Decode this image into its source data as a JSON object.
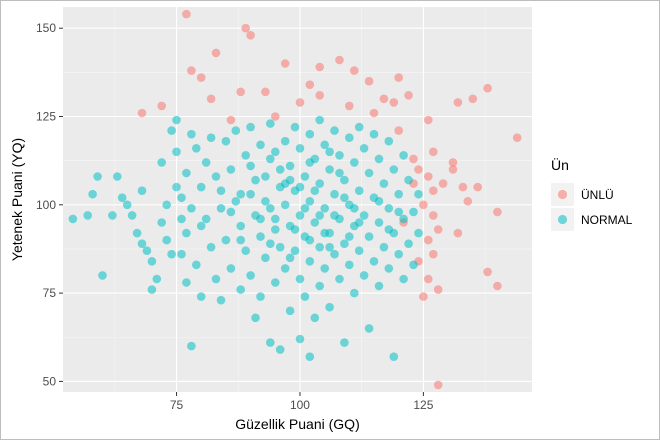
{
  "chart_data": {
    "type": "scatter",
    "xlabel": "Güzellik Puani (GQ)",
    "ylabel": "Yetenek Puani (YQ)",
    "xlim": [
      52,
      147
    ],
    "ylim": [
      47,
      156
    ],
    "x_ticks": [
      75,
      100,
      125
    ],
    "y_ticks": [
      50,
      75,
      100,
      125,
      150
    ],
    "grid": true,
    "legend": {
      "title": "Ün",
      "placement": "right",
      "entries": [
        "ÜNLÜ",
        "NORMAL"
      ]
    },
    "colors": {
      "ÜNLÜ": "#F8766D",
      "NORMAL": "#00BFC4",
      "panel": "#EBEBEB",
      "grid_major": "#FFFFFF",
      "grid_minor": "#F5F5F5"
    },
    "series": [
      {
        "name": "ÜNLÜ",
        "points": [
          [
            77,
            154
          ],
          [
            89,
            150
          ],
          [
            90,
            148
          ],
          [
            83,
            143
          ],
          [
            78,
            138
          ],
          [
            80,
            136
          ],
          [
            97,
            140
          ],
          [
            104,
            139
          ],
          [
            108,
            141
          ],
          [
            111,
            138
          ],
          [
            114,
            135
          ],
          [
            120,
            136
          ],
          [
            119,
            129
          ],
          [
            122,
            131
          ],
          [
            117,
            130
          ],
          [
            104,
            131
          ],
          [
            102,
            134
          ],
          [
            93,
            132
          ],
          [
            88,
            132
          ],
          [
            82,
            130
          ],
          [
            72,
            128
          ],
          [
            68,
            126
          ],
          [
            86,
            124
          ],
          [
            95,
            125
          ],
          [
            100,
            129
          ],
          [
            110,
            128
          ],
          [
            115,
            126
          ],
          [
            126,
            124
          ],
          [
            132,
            129
          ],
          [
            135,
            130
          ],
          [
            138,
            133
          ],
          [
            144,
            119
          ],
          [
            120,
            121
          ],
          [
            123,
            113
          ],
          [
            124,
            110
          ],
          [
            126,
            108
          ],
          [
            127,
            104
          ],
          [
            129,
            106
          ],
          [
            125,
            100
          ],
          [
            127,
            97
          ],
          [
            128,
            93
          ],
          [
            126,
            90
          ],
          [
            127,
            86
          ],
          [
            124,
            84
          ],
          [
            126,
            79
          ],
          [
            125,
            74
          ],
          [
            128,
            76
          ],
          [
            131,
            110
          ],
          [
            131,
            112
          ],
          [
            132,
            92
          ],
          [
            134,
            101
          ],
          [
            136,
            105
          ],
          [
            140,
            98
          ],
          [
            138,
            81
          ],
          [
            140,
            77
          ],
          [
            128,
            49
          ],
          [
            121,
            95
          ],
          [
            123,
            106
          ],
          [
            127,
            115
          ],
          [
            133,
            105
          ]
        ]
      },
      {
        "name": "NORMAL",
        "points": [
          [
            54,
            96
          ],
          [
            57,
            97
          ],
          [
            58,
            103
          ],
          [
            59,
            108
          ],
          [
            60,
            80
          ],
          [
            62,
            97
          ],
          [
            63,
            108
          ],
          [
            64,
            102
          ],
          [
            65,
            100
          ],
          [
            66,
            97
          ],
          [
            67,
            92
          ],
          [
            68,
            104
          ],
          [
            68,
            89
          ],
          [
            69,
            87
          ],
          [
            70,
            84
          ],
          [
            70,
            76
          ],
          [
            71,
            79
          ],
          [
            72,
            112
          ],
          [
            72,
            95
          ],
          [
            73,
            100
          ],
          [
            73,
            90
          ],
          [
            74,
            121
          ],
          [
            74,
            86
          ],
          [
            75,
            124
          ],
          [
            75,
            115
          ],
          [
            75,
            105
          ],
          [
            76,
            96
          ],
          [
            76,
            86
          ],
          [
            77,
            109
          ],
          [
            77,
            92
          ],
          [
            77,
            78
          ],
          [
            78,
            120
          ],
          [
            78,
            99
          ],
          [
            78,
            60
          ],
          [
            79,
            116
          ],
          [
            79,
            83
          ],
          [
            80,
            105
          ],
          [
            80,
            74
          ],
          [
            81,
            112
          ],
          [
            81,
            96
          ],
          [
            82,
            119
          ],
          [
            82,
            88
          ],
          [
            83,
            108
          ],
          [
            83,
            79
          ],
          [
            84,
            99
          ],
          [
            84,
            73
          ],
          [
            85,
            118
          ],
          [
            85,
            90
          ],
          [
            86,
            110
          ],
          [
            86,
            82
          ],
          [
            87,
            101
          ],
          [
            87,
            121
          ],
          [
            88,
            94
          ],
          [
            88,
            76
          ],
          [
            89,
            114
          ],
          [
            89,
            87
          ],
          [
            90,
            122
          ],
          [
            90,
            103
          ],
          [
            90,
            80
          ],
          [
            91,
            97
          ],
          [
            91,
            68
          ],
          [
            92,
            117
          ],
          [
            92,
            91
          ],
          [
            92,
            74
          ],
          [
            93,
            108
          ],
          [
            93,
            85
          ],
          [
            94,
            123
          ],
          [
            94,
            99
          ],
          [
            94,
            61
          ],
          [
            95,
            115
          ],
          [
            95,
            93
          ],
          [
            95,
            78
          ],
          [
            96,
            105
          ],
          [
            96,
            88
          ],
          [
            96,
            59
          ],
          [
            97,
            118
          ],
          [
            97,
            100
          ],
          [
            97,
            82
          ],
          [
            98,
            111
          ],
          [
            98,
            94
          ],
          [
            98,
            70
          ],
          [
            99,
            122
          ],
          [
            99,
            104
          ],
          [
            99,
            87
          ],
          [
            100,
            116
          ],
          [
            100,
            97
          ],
          [
            100,
            79
          ],
          [
            100,
            62
          ],
          [
            101,
            108
          ],
          [
            101,
            91
          ],
          [
            101,
            74
          ],
          [
            102,
            120
          ],
          [
            102,
            101
          ],
          [
            102,
            84
          ],
          [
            102,
            57
          ],
          [
            103,
            113
          ],
          [
            103,
            95
          ],
          [
            103,
            68
          ],
          [
            104,
            124
          ],
          [
            104,
            106
          ],
          [
            104,
            88
          ],
          [
            104,
            77
          ],
          [
            105,
            117
          ],
          [
            105,
            99
          ],
          [
            105,
            82
          ],
          [
            106,
            110
          ],
          [
            106,
            92
          ],
          [
            106,
            71
          ],
          [
            107,
            121
          ],
          [
            107,
            103
          ],
          [
            107,
            86
          ],
          [
            108,
            114
          ],
          [
            108,
            96
          ],
          [
            108,
            79
          ],
          [
            109,
            107
          ],
          [
            109,
            89
          ],
          [
            109,
            61
          ],
          [
            110,
            119
          ],
          [
            110,
            100
          ],
          [
            110,
            83
          ],
          [
            111,
            112
          ],
          [
            111,
            94
          ],
          [
            111,
            75
          ],
          [
            112,
            122
          ],
          [
            112,
            104
          ],
          [
            112,
            87
          ],
          [
            113,
            116
          ],
          [
            113,
            97
          ],
          [
            113,
            80
          ],
          [
            114,
            109
          ],
          [
            114,
            91
          ],
          [
            114,
            65
          ],
          [
            115,
            120
          ],
          [
            115,
            102
          ],
          [
            115,
            84
          ],
          [
            116,
            113
          ],
          [
            116,
            95
          ],
          [
            116,
            77
          ],
          [
            117,
            106
          ],
          [
            117,
            88
          ],
          [
            118,
            118
          ],
          [
            118,
            99
          ],
          [
            118,
            82
          ],
          [
            119,
            110
          ],
          [
            119,
            92
          ],
          [
            119,
            57
          ],
          [
            120,
            103
          ],
          [
            120,
            86
          ],
          [
            121,
            114
          ],
          [
            121,
            96
          ],
          [
            121,
            79
          ],
          [
            122,
            107
          ],
          [
            122,
            89
          ],
          [
            123,
            98
          ],
          [
            123,
            83
          ],
          [
            124,
            103
          ],
          [
            124,
            92
          ],
          [
            86,
            98
          ],
          [
            88,
            103
          ],
          [
            91,
            107
          ],
          [
            93,
            101
          ],
          [
            95,
            96
          ],
          [
            97,
            106
          ],
          [
            99,
            93
          ],
          [
            101,
            99
          ],
          [
            103,
            104
          ],
          [
            105,
            92
          ],
          [
            107,
            97
          ],
          [
            109,
            102
          ],
          [
            111,
            99
          ],
          [
            92,
            96
          ],
          [
            96,
            110
          ],
          [
            100,
            105
          ],
          [
            104,
            97
          ],
          [
            108,
            109
          ],
          [
            112,
            95
          ],
          [
            94,
            89
          ],
          [
            98,
            85
          ],
          [
            102,
            90
          ],
          [
            106,
            88
          ],
          [
            110,
            91
          ],
          [
            90,
            111
          ],
          [
            94,
            113
          ],
          [
            98,
            107
          ],
          [
            102,
            112
          ],
          [
            106,
            115
          ],
          [
            84,
            104
          ],
          [
            88,
            90
          ],
          [
            80,
            94
          ],
          [
            76,
            102
          ],
          [
            116,
            101
          ],
          [
            118,
            93
          ],
          [
            120,
            98
          ]
        ]
      }
    ]
  }
}
